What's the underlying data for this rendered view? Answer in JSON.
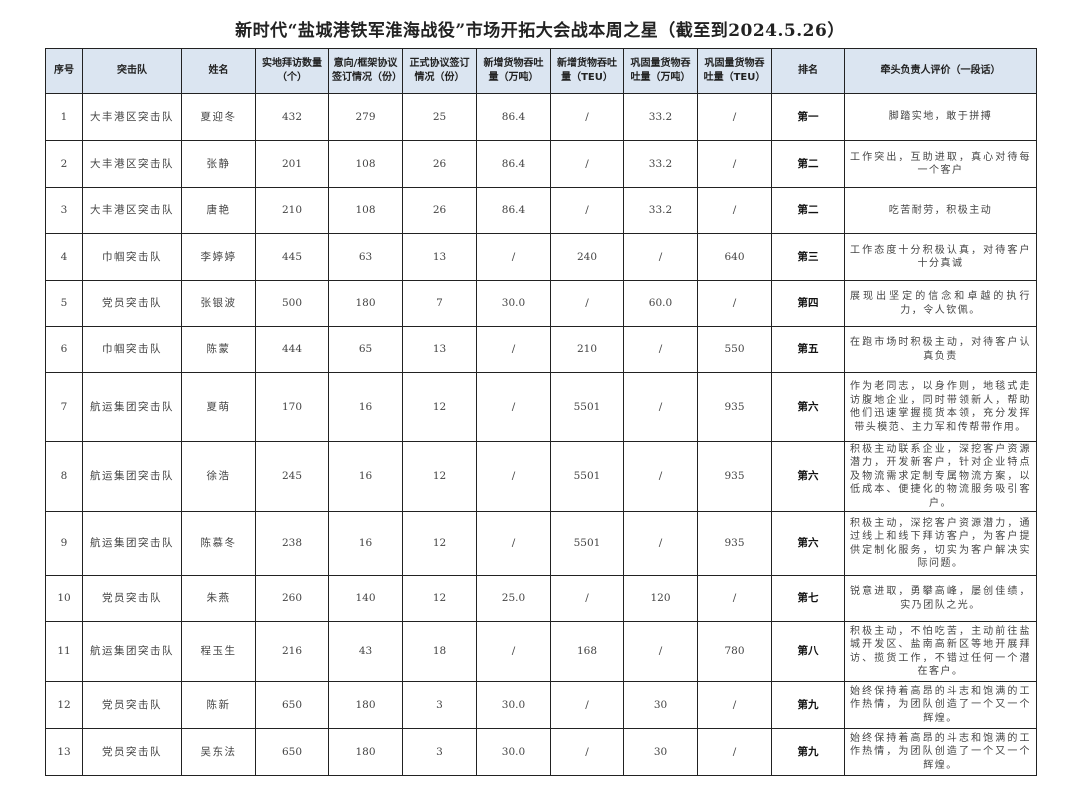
{
  "title": "新时代“盐城港铁军淮海战役”市场开拓大会战本周之星（截至到2024.5.26）",
  "table": {
    "headers": [
      "序号",
      "突击队",
      "姓名",
      "实地拜访数量（个）",
      "意向/框架协议签订情况（份）",
      "正式协议签订情况（份）",
      "新增货物吞吐量（万吨）",
      "新增货物吞吐量（TEU）",
      "巩固量货物吞吐量（万吨）",
      "巩固量货物吞吐量（TEU）",
      "排名",
      "牵头负责人评价（一段话）"
    ],
    "rows": [
      [
        "1",
        "大丰港区突击队",
        "夏迎冬",
        "432",
        "279",
        "25",
        "86.4",
        "/",
        "33.2",
        "/",
        "第一",
        "脚踏实地，敢于拼搏"
      ],
      [
        "2",
        "大丰港区突击队",
        "张静",
        "201",
        "108",
        "26",
        "86.4",
        "/",
        "33.2",
        "/",
        "第二",
        "工作突出，互助进取，真心对待每一个客户"
      ],
      [
        "3",
        "大丰港区突击队",
        "唐艳",
        "210",
        "108",
        "26",
        "86.4",
        "/",
        "33.2",
        "/",
        "第二",
        "吃苦耐劳，积极主动"
      ],
      [
        "4",
        "巾帼突击队",
        "李婷婷",
        "445",
        "63",
        "13",
        "/",
        "240",
        "/",
        "640",
        "第三",
        "工作态度十分积极认真，对待客户十分真诚"
      ],
      [
        "5",
        "党员突击队",
        "张银波",
        "500",
        "180",
        "7",
        "30.0",
        "/",
        "60.0",
        "/",
        "第四",
        "展现出坚定的信念和卓越的执行力，令人钦佩。"
      ],
      [
        "6",
        "巾帼突击队",
        "陈蒙",
        "444",
        "65",
        "13",
        "/",
        "210",
        "/",
        "550",
        "第五",
        "在跑市场时积极主动，对待客户认真负责"
      ],
      [
        "7",
        "航运集团突击队",
        "夏萌",
        "170",
        "16",
        "12",
        "/",
        "5501",
        "/",
        "935",
        "第六",
        "作为老同志，以身作则，地毯式走访腹地企业，同时带领新人，帮助他们迅速掌握揽货本领，充分发挥带头模范、主力军和传帮带作用。"
      ],
      [
        "8",
        "航运集团突击队",
        "徐浩",
        "245",
        "16",
        "12",
        "/",
        "5501",
        "/",
        "935",
        "第六",
        "积极主动联系企业，深挖客户资源潜力，开发新客户，针对企业特点及物流需求定制专属物流方案，以低成本、便捷化的物流服务吸引客户。"
      ],
      [
        "9",
        "航运集团突击队",
        "陈慕冬",
        "238",
        "16",
        "12",
        "/",
        "5501",
        "/",
        "935",
        "第六",
        "积极主动，深挖客户资源潜力，通过线上和线下拜访客户，为客户提供定制化服务，切实为客户解决实际问题。"
      ],
      [
        "10",
        "党员突击队",
        "朱燕",
        "260",
        "140",
        "12",
        "25.0",
        "/",
        "120",
        "/",
        "第七",
        "锐意进取，勇攀高峰，屡创佳绩，实乃团队之光。"
      ],
      [
        "11",
        "航运集团突击队",
        "程玉生",
        "216",
        "43",
        "18",
        "/",
        "168",
        "/",
        "780",
        "第八",
        "积极主动，不怕吃苦，主动前往盐城开发区、盐南高新区等地开展拜访、揽货工作，不错过任何一个潜在客户。"
      ],
      [
        "12",
        "党员突击队",
        "陈新",
        "650",
        "180",
        "3",
        "30.0",
        "/",
        "30",
        "/",
        "第九",
        "始终保持着高昂的斗志和饱满的工作热情，为团队创造了一个又一个辉煌。"
      ],
      [
        "13",
        "党员突击队",
        "吴东法",
        "650",
        "180",
        "3",
        "30.0",
        "/",
        "30",
        "/",
        "第九",
        "始终保持着高昂的斗志和饱满的工作热情，为团队创造了一个又一个辉煌。"
      ]
    ]
  },
  "colors": {
    "header_bg": "#dbe5f1",
    "border": "#222222"
  }
}
